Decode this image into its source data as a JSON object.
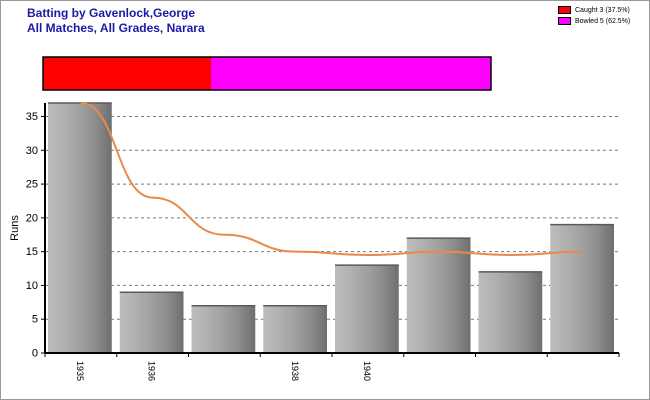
{
  "title_line1": "Batting by Gavenlock,George",
  "title_line2": "All Matches, All Grades, Narara",
  "colors": {
    "title": "#1a1aa6",
    "caught": "#ff0000",
    "bowled": "#ff00ff",
    "trend": "#e98a4a",
    "bar": "#a0a0a0"
  },
  "legend": [
    {
      "label": "Caught 3 (37.5%)",
      "color": "#ff0000"
    },
    {
      "label": "Bowled 5 (62.5%)",
      "color": "#ff00ff"
    }
  ],
  "dismissals": [
    {
      "name": "Caught",
      "count": 3,
      "percent": 37.5,
      "color": "#ff0000"
    },
    {
      "name": "Bowled",
      "count": 5,
      "percent": 62.5,
      "color": "#ff00ff"
    }
  ],
  "chart_data": {
    "type": "bar",
    "title": "",
    "xlabel": "",
    "ylabel": "Runs",
    "ylim": [
      0,
      37
    ],
    "yticks": [
      0,
      5,
      10,
      15,
      20,
      25,
      30,
      35
    ],
    "grid": true,
    "categories": [
      "1935",
      "1936",
      "",
      "1938",
      "1940",
      "",
      "",
      ""
    ],
    "series": [
      {
        "type": "bar",
        "values": [
          37,
          9,
          7,
          7,
          13,
          17,
          12,
          19
        ]
      },
      {
        "type": "line",
        "values": [
          37,
          23,
          17.5,
          15,
          14.5,
          15,
          14.5,
          15
        ]
      }
    ]
  }
}
